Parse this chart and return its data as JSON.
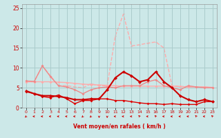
{
  "x": [
    0,
    1,
    2,
    3,
    4,
    5,
    6,
    7,
    8,
    9,
    10,
    11,
    12,
    13,
    14,
    15,
    16,
    17,
    18,
    19,
    20,
    21,
    22,
    23
  ],
  "background_color": "#cce8e8",
  "grid_color": "#aacccc",
  "xlabel": "Vent moyen/en rafales ( km/h )",
  "xlabel_color": "#cc0000",
  "ylim": [
    0,
    26
  ],
  "yticks": [
    0,
    5,
    10,
    15,
    20,
    25
  ],
  "lines": [
    {
      "y": [
        6.5,
        6.5,
        6.5,
        6.5,
        6.4,
        6.3,
        6.1,
        5.9,
        5.8,
        5.7,
        5.6,
        5.5,
        5.4,
        5.4,
        5.4,
        5.4,
        5.4,
        5.4,
        5.4,
        5.3,
        5.2,
        5.2,
        5.2,
        5.1
      ],
      "color": "#ffaaaa",
      "lw": 1.0,
      "ms": 2.0,
      "zorder": 2,
      "linestyle": "-",
      "marker": "D"
    },
    {
      "y": [
        6.5,
        6.5,
        10.5,
        8.0,
        5.5,
        5.5,
        5.2,
        5.0,
        6.0,
        5.5,
        5.5,
        18.0,
        23.5,
        15.5,
        15.8,
        16.2,
        16.5,
        15.0,
        5.5,
        5.3,
        5.3,
        5.2,
        5.2,
        5.0
      ],
      "color": "#ffaaaa",
      "lw": 1.0,
      "ms": 1.5,
      "zorder": 1,
      "linestyle": "--",
      "marker": "D"
    },
    {
      "y": [
        6.7,
        6.6,
        10.5,
        7.8,
        5.5,
        5.2,
        4.5,
        3.5,
        4.5,
        5.0,
        5.2,
        5.0,
        5.5,
        5.5,
        5.5,
        6.5,
        7.0,
        5.5,
        5.0,
        4.5,
        5.5,
        5.2,
        5.0,
        5.0
      ],
      "color": "#ee8888",
      "lw": 1.0,
      "ms": 2.0,
      "zorder": 2,
      "linestyle": "-",
      "marker": "D"
    },
    {
      "y": [
        4.2,
        3.5,
        3.0,
        3.0,
        2.8,
        2.5,
        2.0,
        2.0,
        2.2,
        2.2,
        4.5,
        7.5,
        9.0,
        8.0,
        6.5,
        7.0,
        9.0,
        6.5,
        5.0,
        3.0,
        2.0,
        1.5,
        2.0,
        1.5
      ],
      "color": "#cc0000",
      "lw": 1.5,
      "ms": 2.5,
      "zorder": 4,
      "linestyle": "-",
      "marker": "D"
    },
    {
      "y": [
        4.0,
        3.5,
        2.8,
        2.5,
        3.2,
        2.2,
        1.0,
        1.8,
        1.8,
        2.2,
        2.2,
        1.8,
        1.8,
        1.5,
        1.2,
        1.0,
        1.0,
        0.8,
        1.0,
        0.8,
        0.8,
        0.8,
        1.5,
        1.5
      ],
      "color": "#dd0000",
      "lw": 1.0,
      "ms": 2.0,
      "zorder": 3,
      "linestyle": "-",
      "marker": "D"
    }
  ],
  "arrow_angles": [
    315,
    270,
    270,
    270,
    270,
    270,
    270,
    315,
    315,
    0,
    0,
    270,
    270,
    270,
    225,
    270,
    225,
    270,
    270,
    270,
    270,
    225,
    270,
    225
  ],
  "arrow_color": "#cc0000"
}
